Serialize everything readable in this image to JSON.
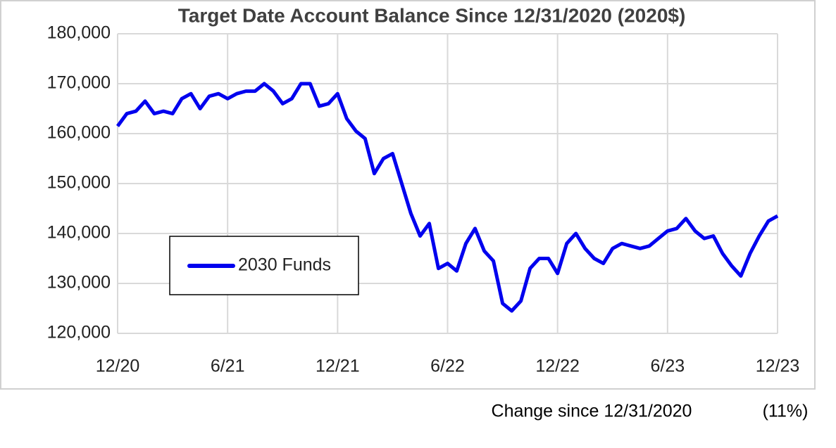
{
  "chart_data": {
    "type": "line",
    "title": "Target Date Account Balance Since 12/31/2020 (2020$)",
    "categories": [
      "12/20",
      null,
      null,
      null,
      null,
      null,
      null,
      null,
      null,
      null,
      null,
      null,
      "6/21",
      null,
      null,
      null,
      null,
      null,
      null,
      null,
      null,
      null,
      null,
      null,
      "12/21",
      null,
      null,
      null,
      null,
      null,
      null,
      null,
      null,
      null,
      null,
      null,
      "6/22",
      null,
      null,
      null,
      null,
      null,
      null,
      null,
      null,
      null,
      null,
      null,
      "12/22",
      null,
      null,
      null,
      null,
      null,
      null,
      null,
      null,
      null,
      null,
      null,
      "6/23",
      null,
      null,
      null,
      null,
      null,
      null,
      null,
      null,
      null,
      null,
      null,
      "12/23"
    ],
    "series": [
      {
        "name": "2030 Funds",
        "color": "#0000ee",
        "values": [
          161500,
          164000,
          164500,
          166500,
          164000,
          164500,
          164000,
          167000,
          168000,
          165000,
          167500,
          168000,
          167000,
          168000,
          168500,
          168500,
          170000,
          168500,
          166000,
          167000,
          170000,
          170000,
          165500,
          166000,
          168000,
          163000,
          160500,
          159000,
          152000,
          155000,
          156000,
          150000,
          144000,
          139500,
          142000,
          133000,
          134000,
          132500,
          138000,
          141000,
          136500,
          134500,
          126000,
          124500,
          126500,
          133000,
          135000,
          135000,
          132000,
          138000,
          140000,
          137000,
          135000,
          134000,
          137000,
          138000,
          137500,
          137000,
          137500,
          139000,
          140500,
          141000,
          143000,
          140500,
          139000,
          139500,
          136000,
          133500,
          131500,
          136000,
          139500,
          142500,
          143500
        ]
      }
    ],
    "ylim": [
      120000,
      180000
    ],
    "yticks": [
      {
        "value": 120000,
        "label": "120,000"
      },
      {
        "value": 130000,
        "label": "130,000"
      },
      {
        "value": 140000,
        "label": "140,000"
      },
      {
        "value": 150000,
        "label": "150,000"
      },
      {
        "value": 160000,
        "label": "160,000"
      },
      {
        "value": 170000,
        "label": "170,000"
      },
      {
        "value": 180000,
        "label": "180,000"
      }
    ],
    "grid": true,
    "legend": "center left",
    "annotations": [
      "Change since 12/31/2020",
      "(11%)"
    ]
  }
}
